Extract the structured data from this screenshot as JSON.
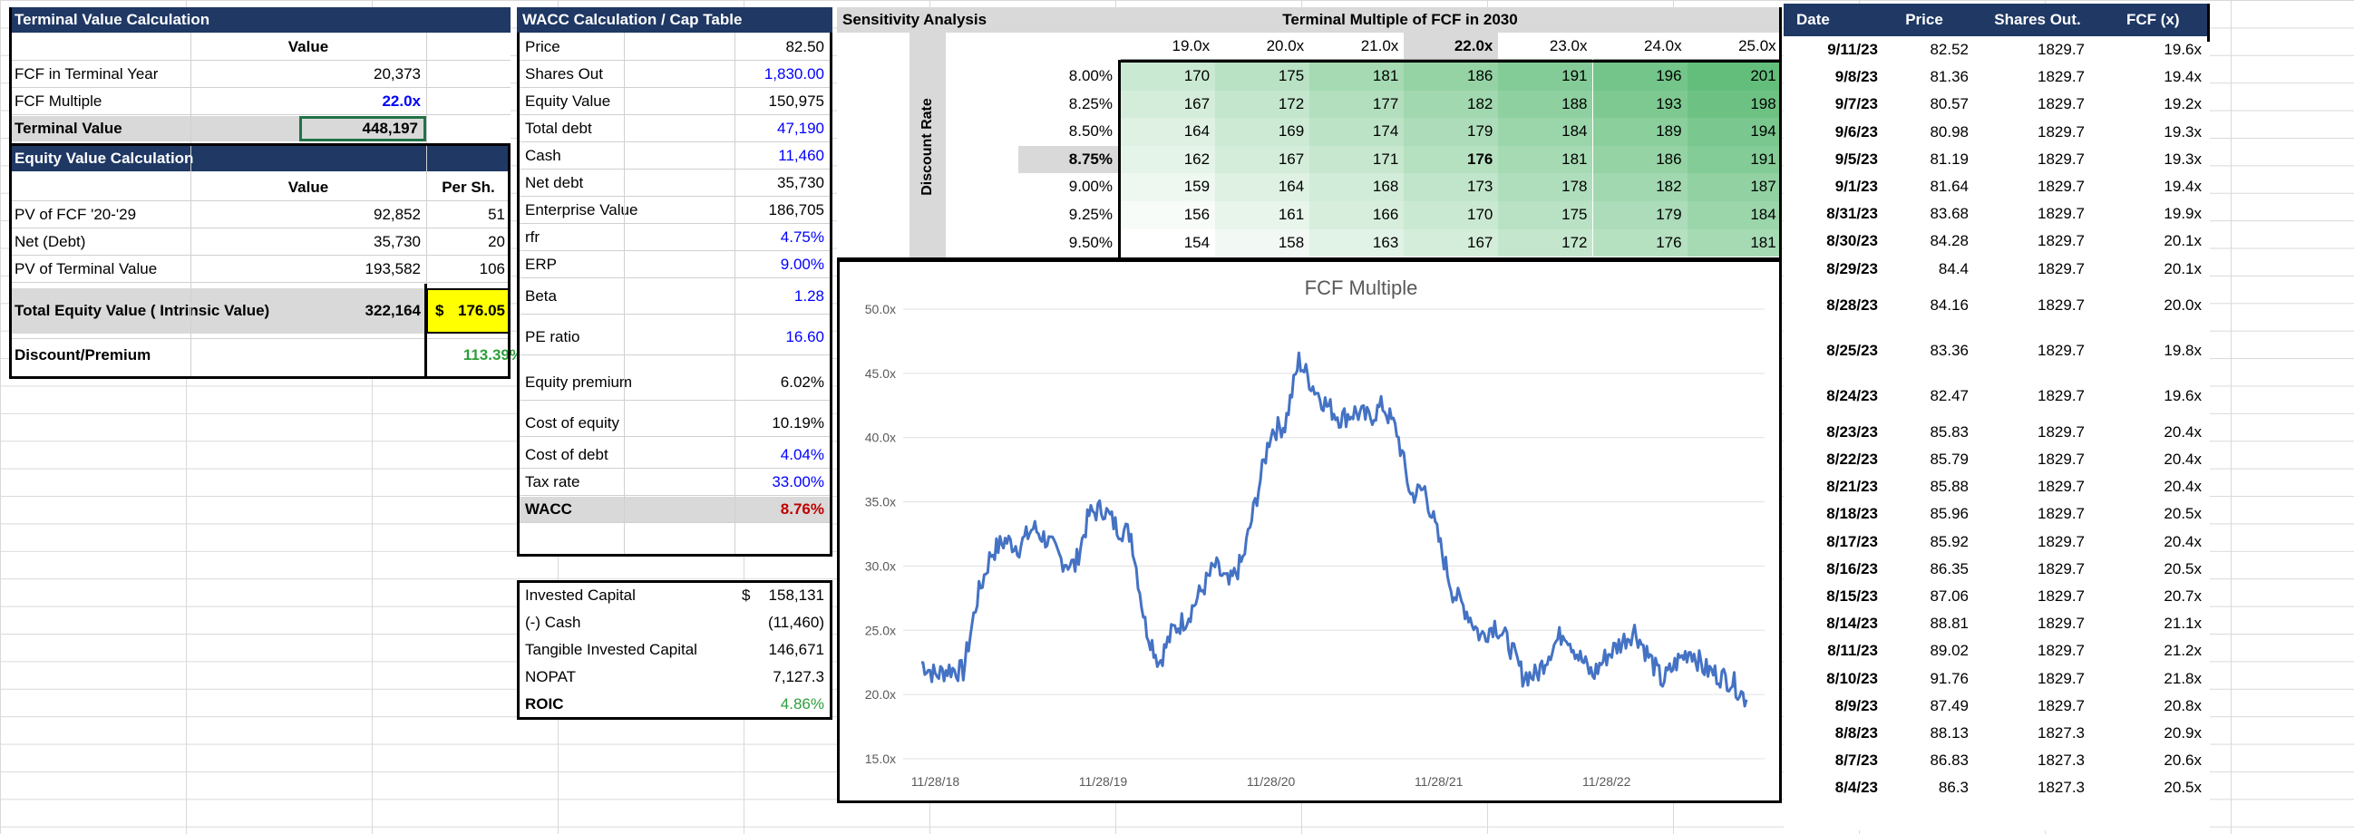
{
  "terminal": {
    "title": "Terminal Value Calculation",
    "value_header": "Value",
    "rows": [
      {
        "label": "FCF in Terminal Year",
        "value": "20,373"
      },
      {
        "label": "FCF Multiple",
        "value": "22.0x"
      },
      {
        "label": "Terminal Value",
        "value": "448,197"
      }
    ]
  },
  "equity": {
    "title": "Equity Value Calculation",
    "value_header": "Value",
    "per_share_header": "Per Sh.",
    "rows": [
      {
        "label": "PV of FCF '20-'29",
        "value": "92,852",
        "per_share": "51"
      },
      {
        "label": "Net (Debt)",
        "value": "35,730",
        "per_share": "20"
      },
      {
        "label": "PV of Terminal Value",
        "value": "193,582",
        "per_share": "106"
      }
    ],
    "total_label": "Total Equity Value ( Intrinsic Value)",
    "total_value": "322,164",
    "total_currency": "$",
    "total_per_share": "176.05",
    "discount_label": "Discount/Premium",
    "discount_value": "113.39%"
  },
  "wacc": {
    "title": "WACC Calculation / Cap Table",
    "rows": [
      {
        "label": "Price",
        "value": "82.50"
      },
      {
        "label": "Shares Out",
        "value": "1,830.00"
      },
      {
        "label": "Equity Value",
        "value": "150,975"
      },
      {
        "label": "Total debt",
        "value": "47,190"
      },
      {
        "label": "Cash",
        "value": "11,460"
      },
      {
        "label": "Net debt",
        "value": "35,730"
      },
      {
        "label": "Enterprise Value",
        "value": "186,705"
      },
      {
        "label": "rfr",
        "value": "4.75%"
      },
      {
        "label": "ERP",
        "value": "9.00%"
      },
      {
        "label": "Beta",
        "value": "1.28"
      },
      {
        "label": "PE ratio",
        "value": "16.60"
      },
      {
        "label": "Equity premium",
        "value": "6.02%"
      },
      {
        "label": "Cost of equity",
        "value": "10.19%"
      },
      {
        "label": "Cost of debt",
        "value": "4.04%"
      },
      {
        "label": "Tax rate",
        "value": "33.00%"
      },
      {
        "label": "WACC",
        "value": "8.76%"
      }
    ]
  },
  "roic": {
    "rows": [
      {
        "label": "Invested Capital",
        "currency": "$",
        "value": "158,131"
      },
      {
        "label": "(-) Cash",
        "currency": "",
        "value": "(11,460)"
      },
      {
        "label": "Tangible Invested Capital",
        "currency": "",
        "value": "146,671"
      },
      {
        "label": "NOPAT",
        "currency": "",
        "value": "7,127.3"
      },
      {
        "label": "ROIC",
        "currency": "",
        "value": "4.86%"
      }
    ]
  },
  "sensitivity": {
    "title": "Sensitivity Analysis",
    "col_title": "Terminal Multiple of FCF in 2030",
    "row_title": "Discount Rate",
    "columns": [
      "19.0x",
      "20.0x",
      "21.0x",
      "22.0x",
      "23.0x",
      "24.0x",
      "25.0x"
    ],
    "rows": [
      "8.00%",
      "8.25%",
      "8.50%",
      "8.75%",
      "9.00%",
      "9.25%",
      "9.50%"
    ],
    "values": [
      [
        170,
        175,
        181,
        186,
        191,
        196,
        201
      ],
      [
        167,
        172,
        177,
        182,
        188,
        193,
        198
      ],
      [
        164,
        169,
        174,
        179,
        184,
        189,
        194
      ],
      [
        162,
        167,
        171,
        176,
        181,
        186,
        191
      ],
      [
        159,
        164,
        168,
        173,
        178,
        182,
        187
      ],
      [
        156,
        161,
        166,
        170,
        175,
        179,
        184
      ],
      [
        154,
        158,
        163,
        167,
        172,
        176,
        181
      ]
    ],
    "highlight_color": "#63be7b"
  },
  "history": {
    "headers": [
      "Date",
      "Price",
      "Shares Out.",
      "FCF (x)"
    ],
    "rows": [
      [
        "9/11/23",
        "82.52",
        "1829.7",
        "19.6x"
      ],
      [
        "9/8/23",
        "81.36",
        "1829.7",
        "19.4x"
      ],
      [
        "9/7/23",
        "80.57",
        "1829.7",
        "19.2x"
      ],
      [
        "9/6/23",
        "80.98",
        "1829.7",
        "19.3x"
      ],
      [
        "9/5/23",
        "81.19",
        "1829.7",
        "19.3x"
      ],
      [
        "9/1/23",
        "81.64",
        "1829.7",
        "19.4x"
      ],
      [
        "8/31/23",
        "83.68",
        "1829.7",
        "19.9x"
      ],
      [
        "8/30/23",
        "84.28",
        "1829.7",
        "20.1x"
      ],
      [
        "8/29/23",
        "84.4",
        "1829.7",
        "20.1x"
      ],
      [
        "8/28/23",
        "84.16",
        "1829.7",
        "20.0x"
      ],
      [
        "8/25/23",
        "83.36",
        "1829.7",
        "19.8x"
      ],
      [
        "8/24/23",
        "82.47",
        "1829.7",
        "19.6x"
      ],
      [
        "8/23/23",
        "85.83",
        "1829.7",
        "20.4x"
      ],
      [
        "8/22/23",
        "85.79",
        "1829.7",
        "20.4x"
      ],
      [
        "8/21/23",
        "85.88",
        "1829.7",
        "20.4x"
      ],
      [
        "8/18/23",
        "85.96",
        "1829.7",
        "20.5x"
      ],
      [
        "8/17/23",
        "85.92",
        "1829.7",
        "20.4x"
      ],
      [
        "8/16/23",
        "86.35",
        "1829.7",
        "20.5x"
      ],
      [
        "8/15/23",
        "87.06",
        "1829.7",
        "20.7x"
      ],
      [
        "8/14/23",
        "88.81",
        "1829.7",
        "21.1x"
      ],
      [
        "8/11/23",
        "89.02",
        "1829.7",
        "21.2x"
      ],
      [
        "8/10/23",
        "91.76",
        "1829.7",
        "21.8x"
      ],
      [
        "8/9/23",
        "87.49",
        "1829.7",
        "20.8x"
      ],
      [
        "8/8/23",
        "88.13",
        "1827.3",
        "20.9x"
      ],
      [
        "8/7/23",
        "86.83",
        "1827.3",
        "20.6x"
      ],
      [
        "8/4/23",
        "86.3",
        "1827.3",
        "20.5x"
      ]
    ]
  },
  "chart_data": {
    "type": "line",
    "title": "FCF Multiple",
    "xlabel": "",
    "ylabel": "",
    "x_ticks": [
      "11/28/18",
      "11/28/19",
      "11/28/20",
      "11/28/21",
      "11/28/22"
    ],
    "y_ticks": [
      "15.0x",
      "20.0x",
      "25.0x",
      "30.0x",
      "35.0x",
      "40.0x",
      "45.0x",
      "50.0x"
    ],
    "ylim": [
      15,
      50
    ],
    "grid": "horizontal",
    "series": [
      {
        "color": "#4472c4",
        "x": [
          "10/18",
          "11/18",
          "12/18",
          "1/19",
          "2/19",
          "3/19",
          "4/19",
          "5/19",
          "6/19",
          "7/19",
          "8/19",
          "9/19",
          "10/19",
          "11/19",
          "12/19",
          "1/20",
          "2/20",
          "3/20",
          "4/20",
          "5/20",
          "6/20",
          "7/20",
          "8/20",
          "9/20",
          "10/20",
          "11/20",
          "12/20",
          "1/21",
          "2/21",
          "3/21",
          "4/21",
          "5/21",
          "6/21",
          "7/21",
          "8/21",
          "9/21",
          "10/21",
          "11/21",
          "12/21",
          "1/22",
          "2/22",
          "3/22",
          "4/22",
          "5/22",
          "6/22",
          "7/22",
          "8/22",
          "9/22",
          "10/22",
          "11/22",
          "12/22",
          "1/23",
          "2/23",
          "3/23",
          "4/23",
          "5/23",
          "6/23",
          "7/23",
          "8/23",
          "9/23"
        ],
        "values": [
          22.5,
          21.5,
          22.0,
          21.8,
          27.5,
          31.0,
          32.0,
          31.5,
          33.0,
          32.0,
          30.5,
          30.0,
          34.0,
          34.5,
          33.0,
          32.5,
          25.5,
          22.5,
          25.0,
          26.0,
          28.0,
          30.0,
          28.5,
          30.5,
          35.5,
          40.5,
          41.0,
          46.0,
          44.0,
          42.5,
          41.5,
          42.0,
          41.5,
          42.5,
          40.5,
          35.5,
          36.0,
          32.0,
          28.0,
          26.5,
          24.5,
          25.5,
          24.0,
          21.5,
          21.5,
          23.5,
          25.0,
          23.0,
          21.5,
          23.0,
          24.0,
          25.0,
          23.0,
          21.0,
          22.5,
          23.5,
          22.0,
          21.5,
          21.0,
          19.6
        ]
      }
    ]
  }
}
